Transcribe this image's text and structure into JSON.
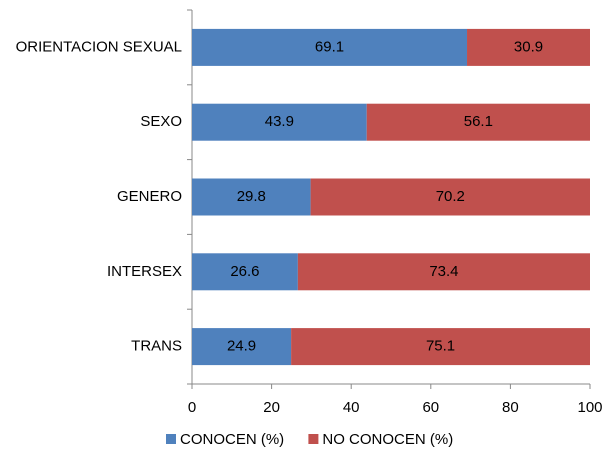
{
  "chart_data": {
    "type": "bar",
    "orientation": "horizontal",
    "stacked": true,
    "categories": [
      "ORIENTACION SEXUAL",
      "SEXO",
      "GENERO",
      "INTERSEX",
      "TRANS"
    ],
    "series": [
      {
        "name": "CONOCEN (%)",
        "color": "#4f81bd",
        "values": [
          69.1,
          43.9,
          29.8,
          26.6,
          24.9
        ]
      },
      {
        "name": "NO CONOCEN (%)",
        "color": "#c0504d",
        "values": [
          30.9,
          56.1,
          70.2,
          73.4,
          75.1
        ]
      }
    ],
    "xlim": [
      0,
      100
    ],
    "xticks": [
      0,
      20,
      40,
      60,
      80,
      100
    ],
    "legend": "bottom"
  }
}
